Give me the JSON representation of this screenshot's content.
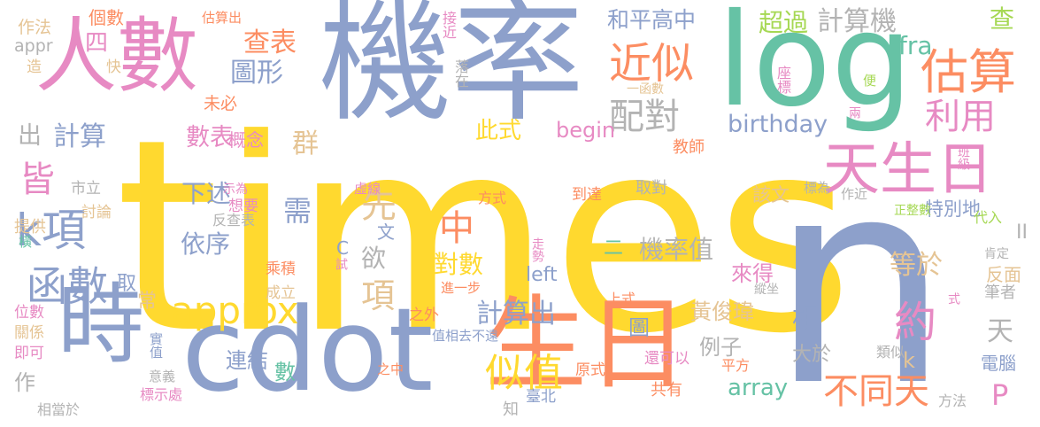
{
  "palette": {
    "blue": "#8da0cb",
    "yellow": "#ffd92f",
    "green": "#66c2a5",
    "orange": "#fc8d62",
    "pink": "#e78ac3",
    "lime": "#a6d854",
    "tan": "#e5c494",
    "gray": "#b3b3b3"
  },
  "words": [
    {
      "text": "times",
      "color": "yellow"
    },
    {
      "text": "n",
      "color": "blue"
    },
    {
      "text": "機率",
      "color": "blue"
    },
    {
      "text": "log",
      "color": "green"
    },
    {
      "text": "人數",
      "color": "pink"
    },
    {
      "text": "cdot",
      "color": "blue"
    },
    {
      "text": "時",
      "color": "blue"
    },
    {
      "text": "生日",
      "color": "orange"
    },
    {
      "text": "天生日",
      "color": "pink"
    },
    {
      "text": "估算",
      "color": "orange"
    },
    {
      "text": "近似",
      "color": "orange"
    },
    {
      "text": "配對",
      "color": "gray"
    },
    {
      "text": "利用",
      "color": "pink"
    },
    {
      "text": "計算機",
      "color": "gray"
    },
    {
      "text": "k項",
      "color": "blue"
    },
    {
      "text": "函數",
      "color": "blue"
    },
    {
      "text": "approx",
      "color": "yellow"
    },
    {
      "text": "不同天",
      "color": "orange"
    },
    {
      "text": "似值",
      "color": "yellow"
    },
    {
      "text": "計算出",
      "color": "blue"
    },
    {
      "text": "約",
      "color": "pink"
    },
    {
      "text": "查表",
      "color": "orange"
    },
    {
      "text": "圖形",
      "color": "blue"
    },
    {
      "text": "數表",
      "color": "pink"
    },
    {
      "text": "計算",
      "color": "blue"
    },
    {
      "text": "birthday",
      "color": "blue"
    },
    {
      "text": "機率值",
      "color": "gray"
    },
    {
      "text": "對數",
      "color": "yellow"
    },
    {
      "text": "fra",
      "color": "green"
    },
    {
      "text": "查",
      "color": "lime"
    },
    {
      "text": "超過",
      "color": "lime"
    },
    {
      "text": "和平高中",
      "color": "blue"
    },
    {
      "text": "皆",
      "color": "pink"
    },
    {
      "text": "群",
      "color": "tan"
    },
    {
      "text": "概念",
      "color": "pink"
    },
    {
      "text": "此式",
      "color": "yellow"
    },
    {
      "text": "begin",
      "color": "pink"
    },
    {
      "text": "下述",
      "color": "blue"
    },
    {
      "text": "依序",
      "color": "blue"
    },
    {
      "text": "需",
      "color": "blue"
    },
    {
      "text": "先",
      "color": "tan"
    },
    {
      "text": "中",
      "color": "orange"
    },
    {
      "text": "欲",
      "color": "gray"
    },
    {
      "text": "項",
      "color": "tan"
    },
    {
      "text": "等於",
      "color": "tan"
    },
    {
      "text": "相",
      "color": "blue"
    },
    {
      "text": "array",
      "color": "green"
    },
    {
      "text": "P",
      "color": "pink"
    },
    {
      "text": "天",
      "color": "gray"
    },
    {
      "text": "黃俊瑋",
      "color": "tan"
    },
    {
      "text": "例子",
      "color": "gray"
    },
    {
      "text": "連結",
      "color": "blue"
    },
    {
      "text": "數",
      "color": "green"
    },
    {
      "text": "圖",
      "color": "blue"
    },
    {
      "text": "left",
      "color": "blue"
    },
    {
      "text": "大於",
      "color": "gray"
    },
    {
      "text": "電腦",
      "color": "blue"
    },
    {
      "text": "個數",
      "color": "orange"
    },
    {
      "text": "作法",
      "color": "tan"
    },
    {
      "text": "四",
      "color": "pink"
    },
    {
      "text": "appr",
      "color": "gray"
    },
    {
      "text": "快",
      "color": "tan"
    },
    {
      "text": "造",
      "color": "tan"
    },
    {
      "text": "估算出",
      "color": "orange"
    },
    {
      "text": "未必",
      "color": "orange"
    },
    {
      "text": "接近",
      "color": "pink"
    },
    {
      "text": "落在",
      "color": "gray"
    },
    {
      "text": "一函數",
      "color": "tan"
    },
    {
      "text": "出",
      "color": "gray"
    },
    {
      "text": "市立",
      "color": "gray"
    },
    {
      "text": "討論",
      "color": "tan"
    },
    {
      "text": "示為",
      "color": "pink"
    },
    {
      "text": "想要",
      "color": "pink"
    },
    {
      "text": "提供",
      "color": "tan"
    },
    {
      "text": "橫",
      "color": "green"
    },
    {
      "text": "取",
      "color": "blue"
    },
    {
      "text": "常",
      "color": "tan"
    },
    {
      "text": "位數",
      "color": "pink"
    },
    {
      "text": "關係",
      "color": "tan"
    },
    {
      "text": "即可",
      "color": "pink"
    },
    {
      "text": "作",
      "color": "gray"
    },
    {
      "text": "實值",
      "color": "blue"
    },
    {
      "text": "意義",
      "color": "gray"
    },
    {
      "text": "相當於",
      "color": "gray"
    },
    {
      "text": "標示處",
      "color": "pink"
    },
    {
      "text": "乘積",
      "color": "orange"
    },
    {
      "text": "成立",
      "color": "tan"
    },
    {
      "text": "反查表",
      "color": "gray"
    },
    {
      "text": "虛線",
      "color": "pink"
    },
    {
      "text": "試",
      "color": "pink"
    },
    {
      "text": "C",
      "color": "blue"
    },
    {
      "text": "文",
      "color": "blue"
    },
    {
      "text": "方式",
      "color": "orange"
    },
    {
      "text": "到達",
      "color": "orange"
    },
    {
      "text": "二",
      "color": "green"
    },
    {
      "text": "走勢",
      "color": "pink"
    },
    {
      "text": "來得",
      "color": "pink"
    },
    {
      "text": "該文",
      "color": "tan"
    },
    {
      "text": "特別地",
      "color": "blue"
    },
    {
      "text": "作近",
      "color": "gray"
    },
    {
      "text": "代入",
      "color": "lime"
    },
    {
      "text": "II",
      "color": "gray"
    },
    {
      "text": "肯定",
      "color": "gray"
    },
    {
      "text": "反面",
      "color": "tan"
    },
    {
      "text": "筆者",
      "color": "gray"
    },
    {
      "text": "正整數",
      "color": "lime"
    },
    {
      "text": "教師",
      "color": "orange"
    },
    {
      "text": "取對",
      "color": "gray"
    },
    {
      "text": "標為",
      "color": "gray"
    },
    {
      "text": "班級",
      "color": "pink"
    },
    {
      "text": "座標",
      "color": "pink"
    },
    {
      "text": "便",
      "color": "lime"
    },
    {
      "text": "兩",
      "color": "pink"
    },
    {
      "text": "上式",
      "color": "orange"
    },
    {
      "text": "之外",
      "color": "orange"
    },
    {
      "text": "進一步",
      "color": "orange"
    },
    {
      "text": "值相去不遠",
      "color": "blue"
    },
    {
      "text": "還可以",
      "color": "pink"
    },
    {
      "text": "縱坐",
      "color": "gray"
    },
    {
      "text": "式",
      "color": "pink"
    },
    {
      "text": "類似",
      "color": "gray"
    },
    {
      "text": "平方",
      "color": "orange"
    },
    {
      "text": "之中",
      "color": "orange"
    },
    {
      "text": "原式",
      "color": "orange"
    },
    {
      "text": "共有",
      "color": "orange"
    },
    {
      "text": "臺北",
      "color": "blue"
    },
    {
      "text": "知",
      "color": "gray"
    },
    {
      "text": "方法",
      "color": "gray"
    },
    {
      "text": "k",
      "color": "tan"
    }
  ]
}
